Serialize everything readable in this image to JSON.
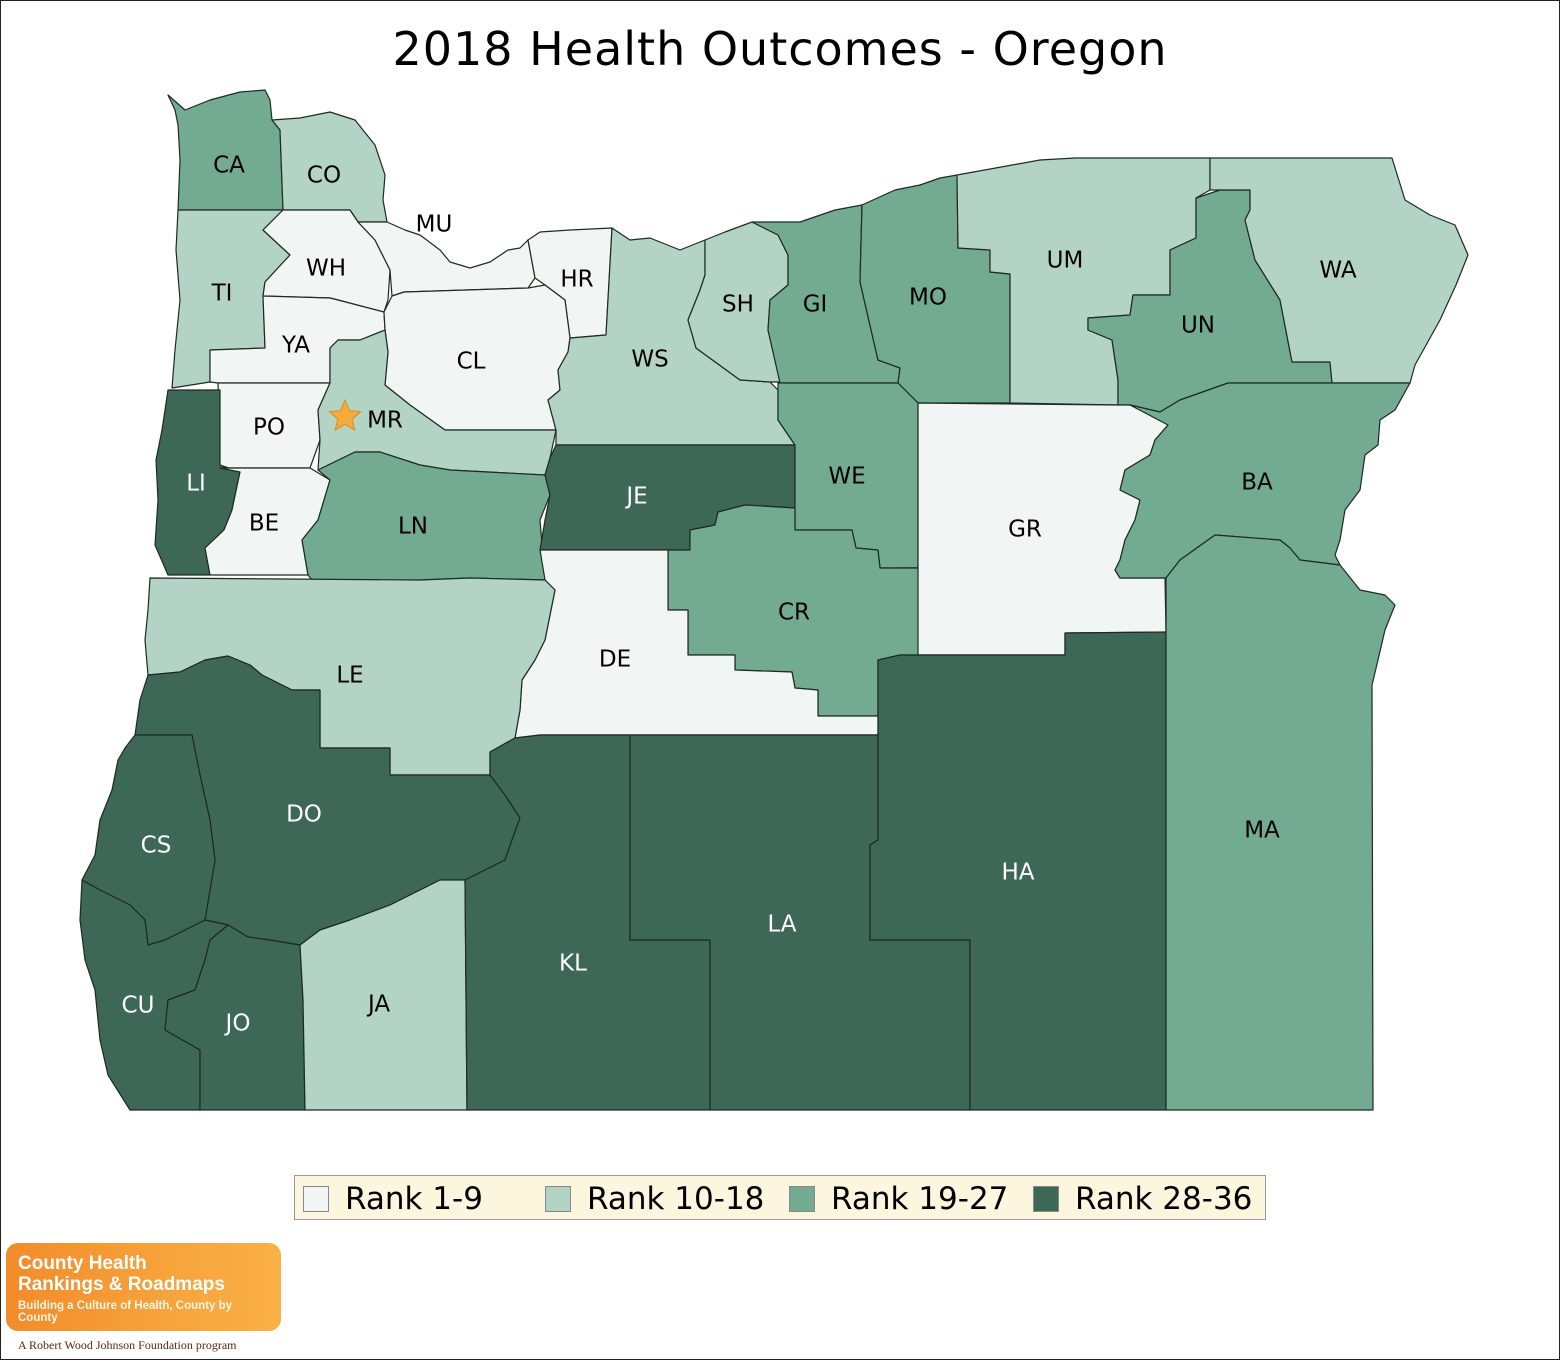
{
  "title": "2018 Health Outcomes - Oregon",
  "colors": {
    "rank_1_9": "#f1f5f3",
    "rank_10_18": "#b3d3c4",
    "rank_19_27": "#72ab91",
    "rank_28_36": "#3d6855",
    "star": "#f6aa3c",
    "legend_bg": "#fdf6df"
  },
  "legend": [
    {
      "label": "Rank 1-9",
      "color": "#f1f5f3"
    },
    {
      "label": "Rank 10-18",
      "color": "#b3d3c4"
    },
    {
      "label": "Rank 19-27",
      "color": "#72ab91"
    },
    {
      "label": "Rank 28-36",
      "color": "#3d6855"
    }
  ],
  "counties": [
    {
      "abbr": "CA",
      "rank_group": "Rank 19-27"
    },
    {
      "abbr": "CO",
      "rank_group": "Rank 10-18"
    },
    {
      "abbr": "TI",
      "rank_group": "Rank 10-18"
    },
    {
      "abbr": "WH",
      "rank_group": "Rank 1-9"
    },
    {
      "abbr": "MU",
      "rank_group": "Rank 1-9"
    },
    {
      "abbr": "HR",
      "rank_group": "Rank 1-9"
    },
    {
      "abbr": "YA",
      "rank_group": "Rank 1-9"
    },
    {
      "abbr": "CL",
      "rank_group": "Rank 1-9"
    },
    {
      "abbr": "WS",
      "rank_group": "Rank 10-18"
    },
    {
      "abbr": "SH",
      "rank_group": "Rank 10-18"
    },
    {
      "abbr": "GI",
      "rank_group": "Rank 19-27"
    },
    {
      "abbr": "MO",
      "rank_group": "Rank 19-27"
    },
    {
      "abbr": "UM",
      "rank_group": "Rank 10-18"
    },
    {
      "abbr": "UN",
      "rank_group": "Rank 19-27"
    },
    {
      "abbr": "WA",
      "rank_group": "Rank 10-18"
    },
    {
      "abbr": "PO",
      "rank_group": "Rank 1-9"
    },
    {
      "abbr": "MR",
      "rank_group": "Rank 10-18"
    },
    {
      "abbr": "LI",
      "rank_group": "Rank 28-36"
    },
    {
      "abbr": "BE",
      "rank_group": "Rank 1-9"
    },
    {
      "abbr": "LN",
      "rank_group": "Rank 19-27"
    },
    {
      "abbr": "JE",
      "rank_group": "Rank 28-36"
    },
    {
      "abbr": "WE",
      "rank_group": "Rank 19-27"
    },
    {
      "abbr": "GR",
      "rank_group": "Rank 1-9"
    },
    {
      "abbr": "BA",
      "rank_group": "Rank 19-27"
    },
    {
      "abbr": "CR",
      "rank_group": "Rank 19-27"
    },
    {
      "abbr": "DE",
      "rank_group": "Rank 1-9"
    },
    {
      "abbr": "LE",
      "rank_group": "Rank 10-18"
    },
    {
      "abbr": "DO",
      "rank_group": "Rank 28-36"
    },
    {
      "abbr": "CS",
      "rank_group": "Rank 28-36"
    },
    {
      "abbr": "CU",
      "rank_group": "Rank 28-36"
    },
    {
      "abbr": "JO",
      "rank_group": "Rank 28-36"
    },
    {
      "abbr": "JA",
      "rank_group": "Rank 10-18"
    },
    {
      "abbr": "KL",
      "rank_group": "Rank 28-36"
    },
    {
      "abbr": "LA",
      "rank_group": "Rank 28-36"
    },
    {
      "abbr": "HA",
      "rank_group": "Rank 28-36"
    },
    {
      "abbr": "MA",
      "rank_group": "Rank 19-27"
    }
  ],
  "capital_marker": "star-icon",
  "logo": {
    "line1": "County Health",
    "line2": "Rankings & Roadmaps",
    "tagline": "Building a Culture of Health, County by County",
    "footer": "A Robert Wood Johnson Foundation program"
  }
}
